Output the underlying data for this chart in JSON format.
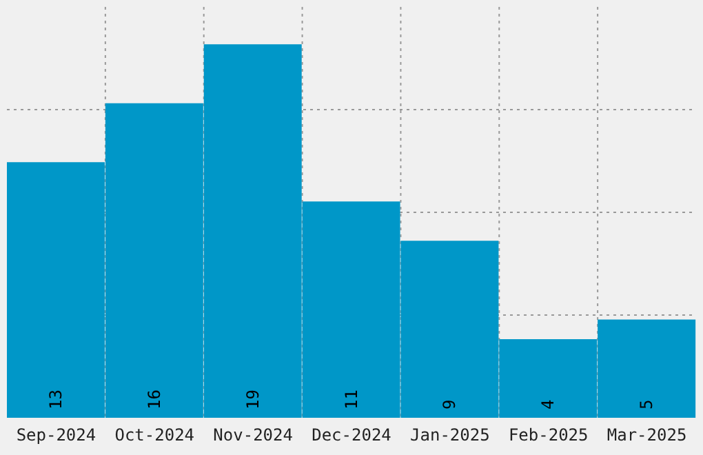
{
  "chart_data": {
    "type": "bar",
    "categories": [
      "Sep-2024",
      "Oct-2024",
      "Nov-2024",
      "Dec-2024",
      "Jan-2025",
      "Feb-2025",
      "Mar-2025"
    ],
    "values": [
      13,
      16,
      19,
      11,
      9,
      4,
      5
    ],
    "color": "#0097c8",
    "ylim": [
      0,
      20.9
    ],
    "yticks": [
      {
        "value": 5.225,
        "label": null
      },
      {
        "value": 10.45,
        "label": null
      },
      {
        "value": 15.675,
        "label": null
      }
    ],
    "tick_labels": "x",
    "grid": true,
    "data_labels": true
  }
}
